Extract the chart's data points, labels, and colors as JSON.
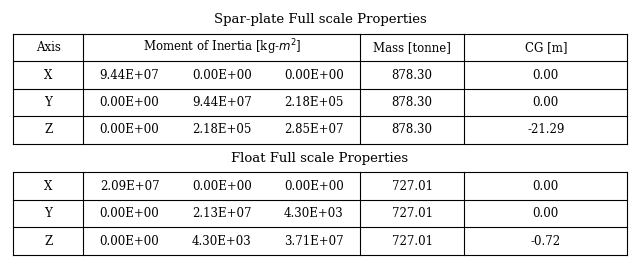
{
  "title1": "Spar-plate Full scale Properties",
  "title2": "Float Full scale Properties",
  "spar_rows": [
    [
      "X",
      "9.44E+07",
      "0.00E+00",
      "0.00E+00",
      "878.30",
      "0.00"
    ],
    [
      "Y",
      "0.00E+00",
      "9.44E+07",
      "2.18E+05",
      "878.30",
      "0.00"
    ],
    [
      "Z",
      "0.00E+00",
      "2.18E+05",
      "2.85E+07",
      "878.30",
      "-21.29"
    ]
  ],
  "float_rows": [
    [
      "X",
      "2.09E+07",
      "0.00E+00",
      "0.00E+00",
      "727.01",
      "0.00"
    ],
    [
      "Y",
      "0.00E+00",
      "2.13E+07",
      "4.30E+03",
      "727.01",
      "0.00"
    ],
    [
      "Z",
      "0.00E+00",
      "4.30E+03",
      "3.71E+07",
      "727.01",
      "-0.72"
    ]
  ],
  "bg_color": "#ffffff",
  "font_size": 8.5,
  "title_font_size": 9.5,
  "lw": 0.8
}
